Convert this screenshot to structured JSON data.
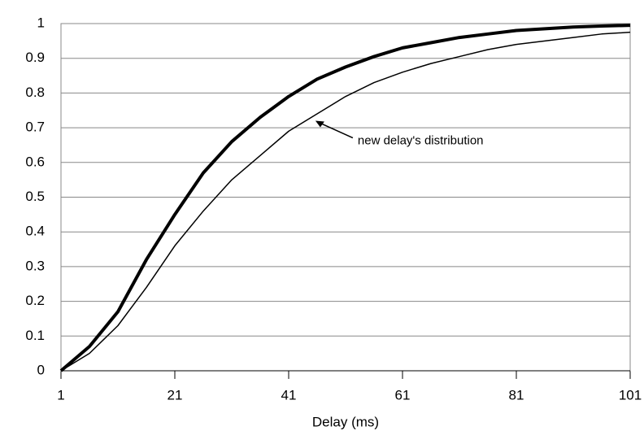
{
  "chart_data": {
    "type": "line",
    "x": [
      1,
      6,
      11,
      16,
      21,
      26,
      31,
      36,
      41,
      46,
      51,
      56,
      61,
      66,
      71,
      76,
      81,
      86,
      91,
      96,
      101
    ],
    "series": [
      {
        "color": "#000000",
        "line_width": 4,
        "values": [
          0,
          0.07,
          0.17,
          0.32,
          0.45,
          0.57,
          0.66,
          0.73,
          0.79,
          0.84,
          0.875,
          0.905,
          0.93,
          0.945,
          0.96,
          0.97,
          0.98,
          0.985,
          0.99,
          0.993,
          0.995
        ]
      },
      {
        "color": "#000000",
        "line_width": 1.5,
        "values": [
          0,
          0.05,
          0.13,
          0.24,
          0.36,
          0.46,
          0.55,
          0.62,
          0.69,
          0.74,
          0.79,
          0.83,
          0.86,
          0.885,
          0.905,
          0.925,
          0.94,
          0.95,
          0.96,
          0.97,
          0.975
        ]
      }
    ],
    "xlabel": "Delay (ms)",
    "annotation": {
      "text": "new delay's distribution",
      "x": 45.7,
      "y": 0.72
    },
    "xlim": [
      1,
      101
    ],
    "xticks": [
      1,
      21,
      41,
      61,
      81,
      101
    ],
    "ylim": [
      0,
      1
    ],
    "yticks": [
      0,
      0.1,
      0.2,
      0.3,
      0.4,
      0.5,
      0.6,
      0.7,
      0.8,
      0.9,
      1
    ],
    "grid": true
  }
}
